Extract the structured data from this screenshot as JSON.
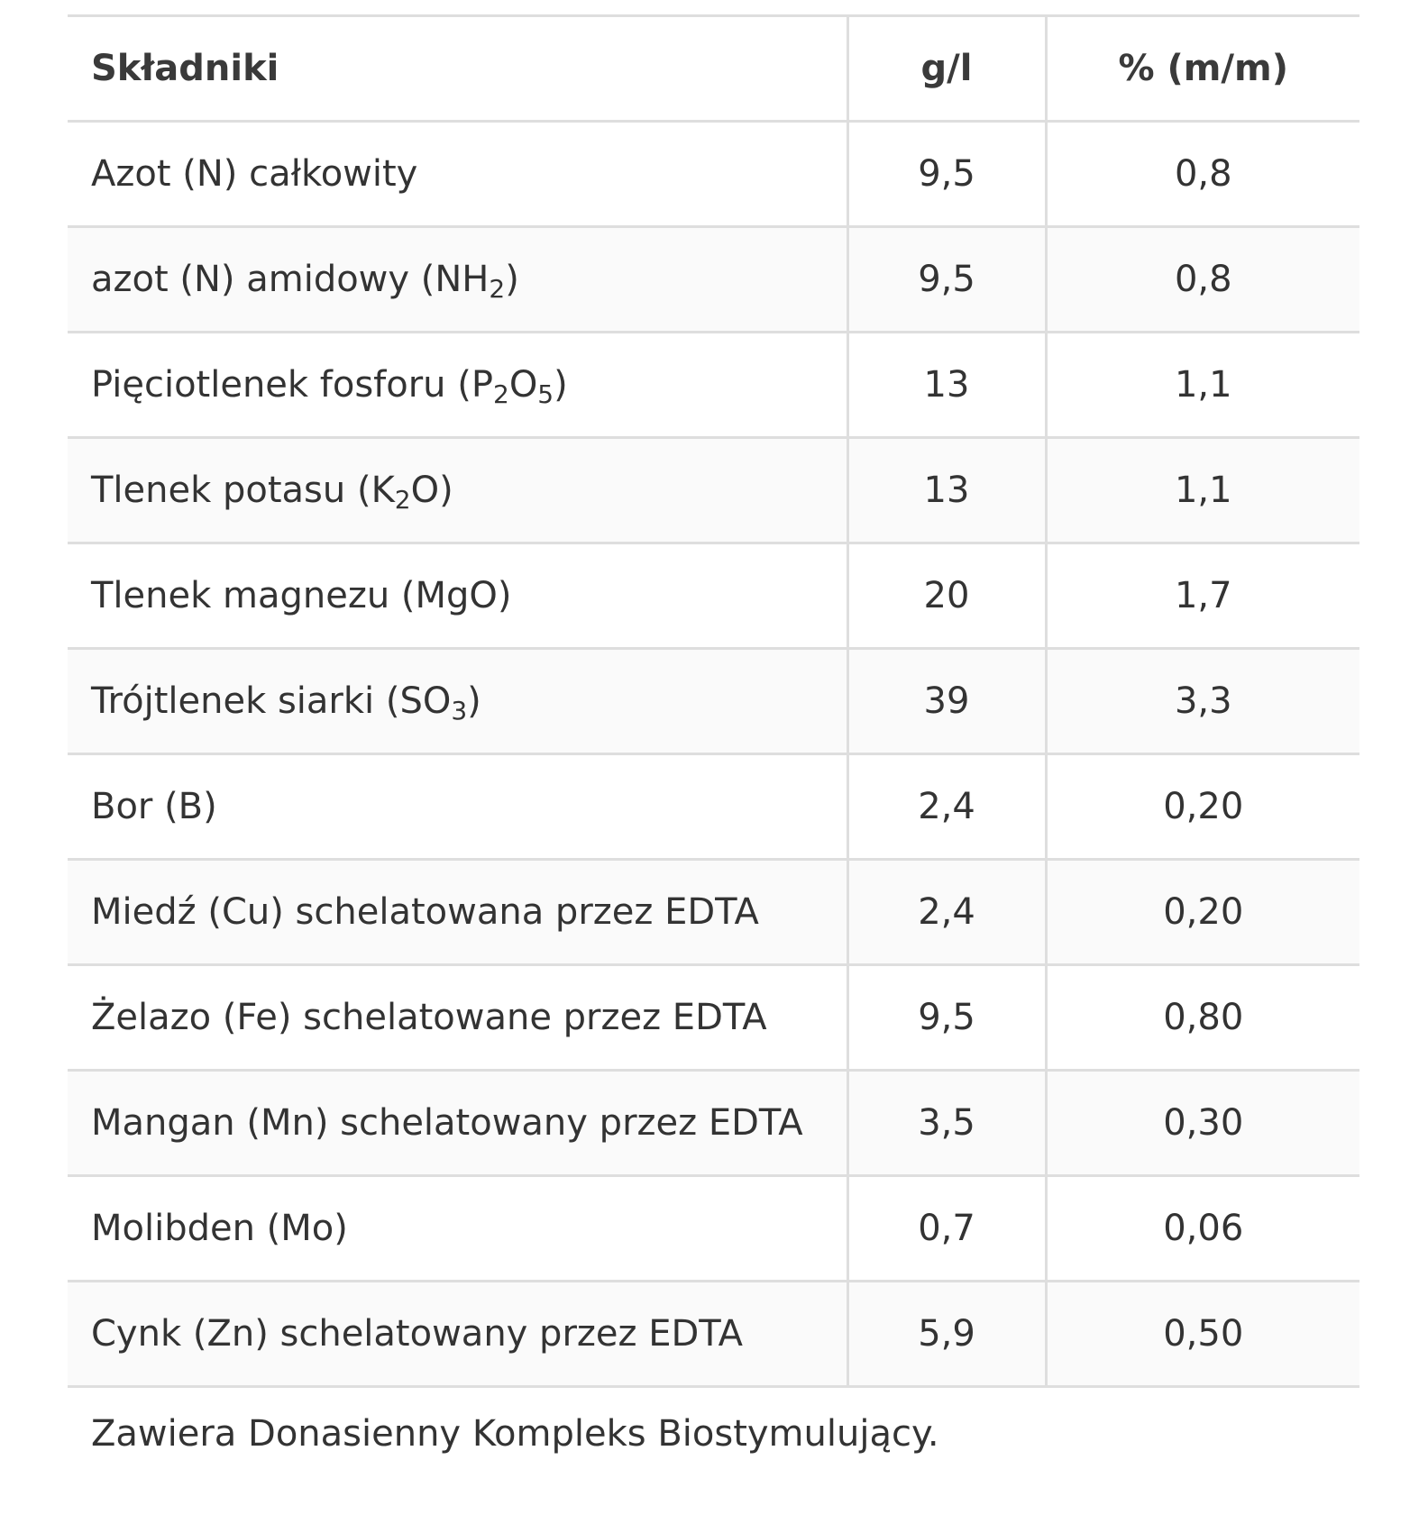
{
  "table": {
    "headers": [
      "Składniki",
      "g/l",
      "% (m/m)"
    ],
    "rows": [
      {
        "name": [
          {
            "t": "Azot (N) całkowity"
          }
        ],
        "gl": "9,5",
        "pct": "0,8"
      },
      {
        "name": [
          {
            "t": "azot (N) amidowy (NH"
          },
          {
            "sub": "2"
          },
          {
            "t": ")"
          }
        ],
        "gl": "9,5",
        "pct": "0,8"
      },
      {
        "name": [
          {
            "t": "Pięciotlenek fosforu (P"
          },
          {
            "sub": "2"
          },
          {
            "t": "O"
          },
          {
            "sub": "5"
          },
          {
            "t": ")"
          }
        ],
        "gl": "13",
        "pct": "1,1"
      },
      {
        "name": [
          {
            "t": "Tlenek potasu (K"
          },
          {
            "sub": "2"
          },
          {
            "t": "O)"
          }
        ],
        "gl": "13",
        "pct": "1,1"
      },
      {
        "name": [
          {
            "t": "Tlenek magnezu (MgO)"
          }
        ],
        "gl": "20",
        "pct": "1,7"
      },
      {
        "name": [
          {
            "t": "Trójtlenek siarki (SO"
          },
          {
            "sub": "3"
          },
          {
            "t": ")"
          }
        ],
        "gl": "39",
        "pct": "3,3"
      },
      {
        "name": [
          {
            "t": "Bor (B)"
          }
        ],
        "gl": "2,4",
        "pct": "0,20"
      },
      {
        "name": [
          {
            "t": "Miedź (Cu) schelatowana przez EDTA"
          }
        ],
        "gl": "2,4",
        "pct": "0,20"
      },
      {
        "name": [
          {
            "t": "Żelazo (Fe) schelatowane przez EDTA"
          }
        ],
        "gl": "9,5",
        "pct": "0,80"
      },
      {
        "name": [
          {
            "t": "Mangan (Mn) schelatowany przez EDTA"
          }
        ],
        "gl": "3,5",
        "pct": "0,30"
      },
      {
        "name": [
          {
            "t": "Molibden (Mo)"
          }
        ],
        "gl": "0,7",
        "pct": "0,06"
      },
      {
        "name": [
          {
            "t": "Cynk (Zn) schelatowany przez EDTA"
          }
        ],
        "gl": "5,9",
        "pct": "0,50"
      }
    ]
  },
  "footer_note": "Zawiera Donasienny Kompleks Biostymulujący."
}
